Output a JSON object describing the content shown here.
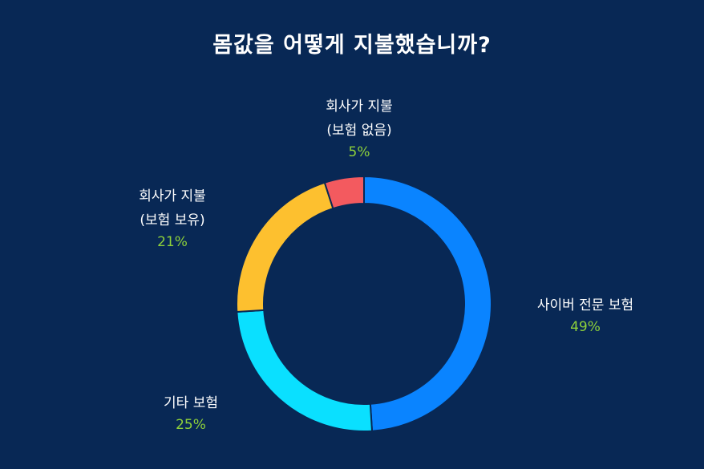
{
  "colors": {
    "background": "#082855",
    "slice_cyber": "#0a84ff",
    "slice_other": "#0ae0ff",
    "slice_company_insured": "#fdc02f",
    "slice_company_uninsured": "#f35a5f",
    "percent_text": "#8ed13a",
    "divider": "#082855"
  },
  "chart_data": {
    "type": "donut",
    "title": "몸값을 어떻게 지불했습니까?",
    "slices": [
      {
        "label_lines": [
          "사이버 전문 보험"
        ],
        "value": 49,
        "percent_label": "49%",
        "color": "#0a84ff"
      },
      {
        "label_lines": [
          "기타 보험"
        ],
        "value": 25,
        "percent_label": "25%",
        "color": "#0ae0ff"
      },
      {
        "label_lines": [
          "회사가 지불",
          "(보험 보유)"
        ],
        "value": 21,
        "percent_label": "21%",
        "color": "#fdc02f"
      },
      {
        "label_lines": [
          "회사가 지불",
          "(보험 없음)"
        ],
        "value": 5,
        "percent_label": "5%",
        "color": "#f35a5f"
      }
    ]
  }
}
